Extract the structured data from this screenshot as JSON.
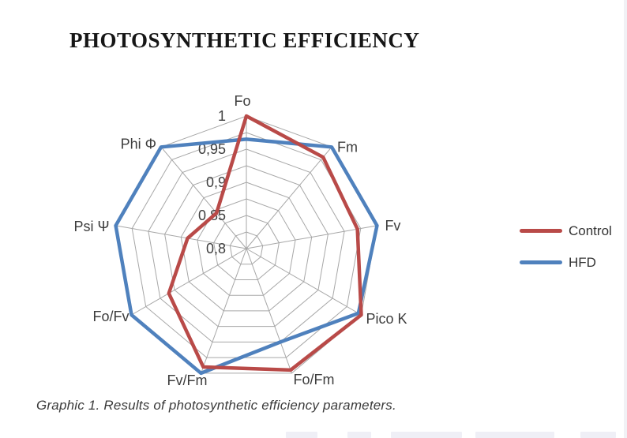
{
  "page": {
    "title": "PHOTOSYNTHETIC EFFICIENCY",
    "caption": "Graphic 1. Results of photosynthetic efficiency parameters."
  },
  "chart_data": {
    "type": "radar",
    "title": "PHOTOSYNTHETIC EFFICIENCY",
    "categories": [
      "Fo",
      "Fm",
      "Fv",
      "Pico K",
      "Fo/Fm",
      "Fv/Fm",
      "Fo/Fv",
      "Psi Ψ",
      "Phi Φ"
    ],
    "series": [
      {
        "name": "Control",
        "color": "#b94a48",
        "values": [
          1.0,
          0.98,
          0.97,
          1.0,
          0.995,
          0.99,
          0.935,
          0.89,
          0.87
        ]
      },
      {
        "name": "HFD",
        "color": "#4f81bd",
        "values": [
          0.965,
          1.0,
          1.0,
          0.995,
          0.95,
          1.0,
          1.0,
          1.0,
          1.0
        ]
      }
    ],
    "axis": {
      "min": 0.8,
      "max": 1.0,
      "gridline_interval": 0.025,
      "tick_values": [
        1.0,
        0.95,
        0.9,
        0.85,
        0.8
      ],
      "tick_labels": [
        "1",
        "0,95",
        "0,9",
        "0,85",
        "0,8"
      ],
      "decimal_separator": ","
    },
    "grid": true,
    "grid_color": "#a7a7a7",
    "legend_position": "right"
  }
}
